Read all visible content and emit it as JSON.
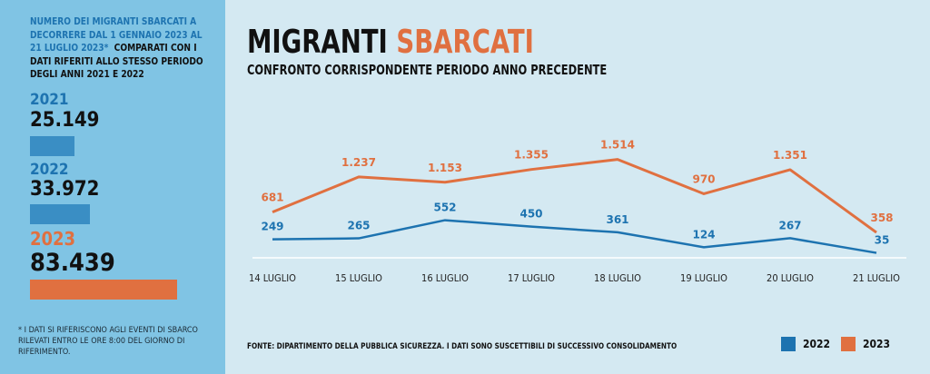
{
  "sidebar": {
    "intro_blue": "NUMERO DEI MIGRANTI SBARCATI A DECORRERE DAL 1 GENNAIO 2023 AL 21 LUGLIO 2023*",
    "intro_black": "COMPARATI CON I DATI RIFERITI ALLO STESSO PERIODO DEGLI ANNI 2021 E 2022",
    "years": [
      {
        "year": "2021",
        "total": "25.149",
        "value": 25149,
        "color": "#3a8ec4"
      },
      {
        "year": "2022",
        "total": "33.972",
        "value": 33972,
        "color": "#3a8ec4"
      },
      {
        "year": "2023",
        "total": "83.439",
        "value": 83439,
        "color": "#e07040"
      }
    ],
    "footnote": "* I DATI SI RIFERISCONO AGLI EVENTI DI SBARCO RILEVATI ENTRO LE ORE 8:00 DEL GIORNO DI RIFERIMENTO."
  },
  "chart_data": {
    "type": "line",
    "title_part1": "MIGRANTI",
    "title_part2": "SBARCATI",
    "subtitle": "CONFRONTO CORRISPONDENTE PERIODO ANNO PRECEDENTE",
    "categories": [
      "14 LUGLIO",
      "15 LUGLIO",
      "16 LUGLIO",
      "17 LUGLIO",
      "18 LUGLIO",
      "19 LUGLIO",
      "20 LUGLIO",
      "21 LUGLIO"
    ],
    "series": [
      {
        "name": "2022",
        "color": "#1d73b0",
        "values": [
          249,
          265,
          552,
          450,
          361,
          124,
          267,
          35
        ],
        "labels": [
          "249",
          "265",
          "552",
          "450",
          "361",
          "124",
          "267",
          "35"
        ]
      },
      {
        "name": "2023",
        "color": "#e07040",
        "values": [
          681,
          1237,
          1153,
          1355,
          1514,
          970,
          1351,
          358
        ],
        "labels": [
          "681",
          "1.237",
          "1.153",
          "1.355",
          "1.514",
          "970",
          "1.351",
          "358"
        ]
      }
    ],
    "ylim": [
      0,
      1600
    ],
    "legend": "bottom-right",
    "source": "FONTE: DIPARTIMENTO DELLA PUBBLICA SICUREZZA. I DATI SONO SUSCETTIBILI DI SUCCESSIVO CONSOLIDAMENTO"
  }
}
